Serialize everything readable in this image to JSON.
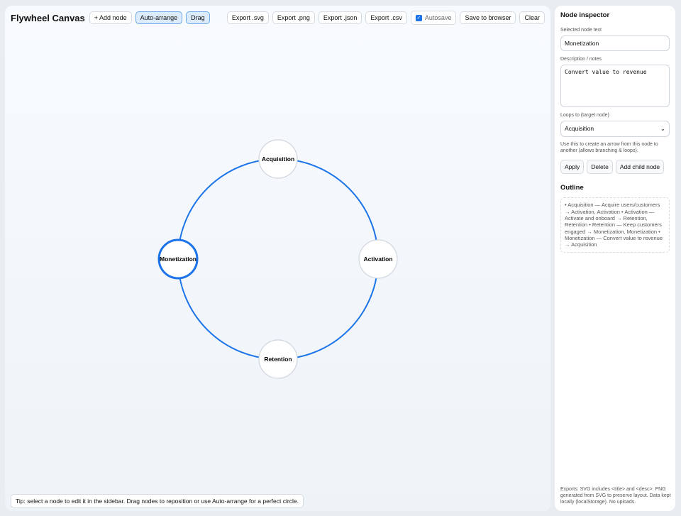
{
  "toolbar": {
    "title": "Flywheel Canvas",
    "add_node": "+ Add node",
    "auto_arrange": "Auto-arrange",
    "drag": "Drag",
    "export_svg": "Export .svg",
    "export_png": "Export .png",
    "export_json": "Export .json",
    "export_csv": "Export .csv",
    "autosave": "Autosave",
    "autosave_checked": true,
    "save": "Save to browser",
    "clear": "Clear"
  },
  "graph": {
    "edge_color": "#1a73e8",
    "selected": "Monetization",
    "nodes": [
      {
        "label": "Acquisition"
      },
      {
        "label": "Activation"
      },
      {
        "label": "Retention"
      },
      {
        "label": "Monetization"
      }
    ]
  },
  "tip": "Tip: select a node to edit it in the sidebar. Drag nodes to reposition or use Auto-arrange for a perfect circle.",
  "inspector": {
    "title": "Node inspector",
    "text_label": "Selected node text",
    "text_value": "Monetization",
    "desc_label": "Description / notes",
    "desc_value": "Convert value to revenue",
    "loops_label": "Loops to (target node)",
    "loops_value": "Acquisition",
    "loops_note": "Use this to create an arrow from this node to another (allows branching & loops).",
    "apply": "Apply",
    "delete": "Delete",
    "add_child": "Add child node",
    "outline_title": "Outline",
    "outline": "• Acquisition — Acquire users/customers → Activation, Activation • Activation — Activate and onboard → Retention, Retention • Retention — Keep customers engaged → Monetization, Monetization • Monetization — Convert value to revenue → Acquisition",
    "footer": "Exports: SVG includes <title> and <desc>. PNG generated from SVG to preserve layout. Data kept locally (localStorage). No uploads."
  }
}
